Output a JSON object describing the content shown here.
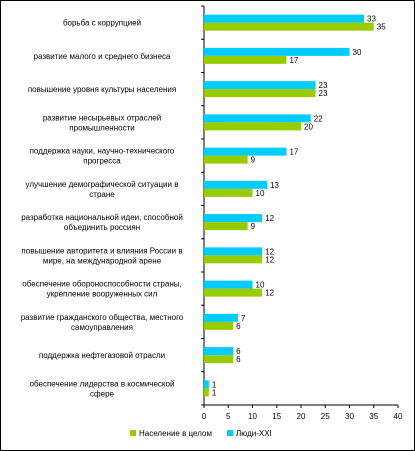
{
  "chart_data": {
    "type": "bar",
    "orientation": "horizontal",
    "categories": [
      [
        "борьба с коррупцией"
      ],
      [
        "развитие малого и среднего бизнеса"
      ],
      [
        "повышение уровня культуры населения"
      ],
      [
        "развитие несырьевых отраслей",
        "промышленности"
      ],
      [
        "поддержка науки, научно-технического",
        "прогресса"
      ],
      [
        "улучшение демографической ситуации в",
        "стране"
      ],
      [
        "разработка национальной идеи, способной",
        "объединить россиян"
      ],
      [
        "повышение авторитета и влияния России в",
        "мире, на международной арене"
      ],
      [
        "обеспечение обороноспособности страны,",
        "укрепление вооруженных сил"
      ],
      [
        "развитие гражданского общества, местного",
        "самоуправления"
      ],
      [
        "поддержка нефтегазовой отрасли"
      ],
      [
        "обеспечение лидерства в космической",
        "сфере"
      ]
    ],
    "series": [
      {
        "name": "Население в целом",
        "color": "#99cc00",
        "values": [
          35,
          17,
          23,
          20,
          9,
          10,
          9,
          12,
          12,
          6,
          6,
          1
        ]
      },
      {
        "name": "Люди-XXI",
        "color": "#00ccff",
        "values": [
          33,
          30,
          23,
          22,
          17,
          13,
          12,
          12,
          10,
          7,
          6,
          1
        ]
      }
    ],
    "xlim": [
      0,
      40
    ],
    "xticks": [
      0,
      5,
      10,
      15,
      20,
      25,
      30,
      35,
      40
    ],
    "legend_position": "bottom",
    "grid": false
  }
}
